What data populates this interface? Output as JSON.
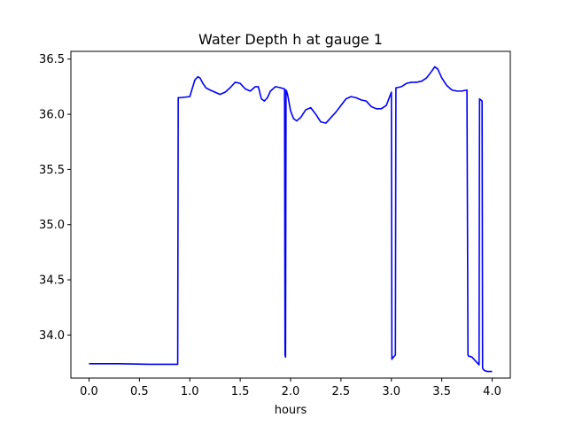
{
  "chart_data": {
    "type": "line",
    "title": "Water Depth h at gauge 1",
    "xlabel": "hours",
    "ylabel": "",
    "xlim": [
      -0.18,
      4.18
    ],
    "ylim": [
      33.61,
      36.57
    ],
    "grid": false,
    "xticks": [
      0.0,
      0.5,
      1.0,
      1.5,
      2.0,
      2.5,
      3.0,
      3.5,
      4.0
    ],
    "xtick_labels": [
      "0.0",
      "0.5",
      "1.0",
      "1.5",
      "2.0",
      "2.5",
      "3.0",
      "3.5",
      "4.0"
    ],
    "yticks": [
      34.0,
      34.5,
      35.0,
      35.5,
      36.0,
      36.5
    ],
    "ytick_labels": [
      "34.0",
      "34.5",
      "35.0",
      "35.5",
      "36.0",
      "36.5"
    ],
    "series": [
      {
        "color": "#0000ff",
        "x": [
          0.0,
          0.3,
          0.6,
          0.88,
          0.885,
          0.9,
          1.0,
          1.02,
          1.05,
          1.08,
          1.1,
          1.13,
          1.16,
          1.2,
          1.25,
          1.3,
          1.35,
          1.4,
          1.45,
          1.5,
          1.55,
          1.6,
          1.65,
          1.68,
          1.71,
          1.74,
          1.77,
          1.8,
          1.85,
          1.9,
          1.94,
          1.945,
          1.95,
          1.955,
          1.96,
          1.97,
          2.0,
          2.03,
          2.06,
          2.1,
          2.15,
          2.2,
          2.25,
          2.3,
          2.35,
          2.4,
          2.45,
          2.5,
          2.55,
          2.6,
          2.65,
          2.7,
          2.75,
          2.8,
          2.85,
          2.9,
          2.95,
          3.0,
          3.005,
          3.01,
          3.04,
          3.045,
          3.05,
          3.1,
          3.15,
          3.2,
          3.25,
          3.3,
          3.35,
          3.4,
          3.43,
          3.46,
          3.5,
          3.55,
          3.6,
          3.65,
          3.7,
          3.75,
          3.76,
          3.765,
          3.8,
          3.82,
          3.85,
          3.87,
          3.875,
          3.9,
          3.905,
          3.92,
          3.95,
          4.0
        ],
        "y": [
          33.74,
          33.74,
          33.735,
          33.735,
          36.15,
          36.15,
          36.16,
          36.22,
          36.31,
          36.34,
          36.33,
          36.28,
          36.24,
          36.22,
          36.2,
          36.18,
          36.2,
          36.24,
          36.29,
          36.28,
          36.23,
          36.21,
          36.25,
          36.25,
          36.14,
          36.12,
          36.15,
          36.21,
          36.25,
          36.24,
          36.23,
          33.82,
          33.8,
          36.22,
          36.21,
          36.18,
          36.03,
          35.96,
          35.94,
          35.97,
          36.04,
          36.06,
          36.0,
          35.93,
          35.92,
          35.97,
          36.02,
          36.08,
          36.14,
          36.16,
          36.15,
          36.13,
          36.12,
          36.07,
          36.05,
          36.05,
          36.08,
          36.2,
          33.78,
          33.79,
          33.82,
          36.24,
          36.24,
          36.25,
          36.28,
          36.29,
          36.29,
          36.3,
          36.33,
          36.39,
          36.43,
          36.41,
          36.33,
          36.26,
          36.22,
          36.21,
          36.21,
          36.22,
          33.82,
          33.81,
          33.8,
          33.78,
          33.75,
          33.73,
          36.14,
          36.12,
          33.7,
          33.68,
          33.67,
          33.67
        ]
      }
    ]
  }
}
